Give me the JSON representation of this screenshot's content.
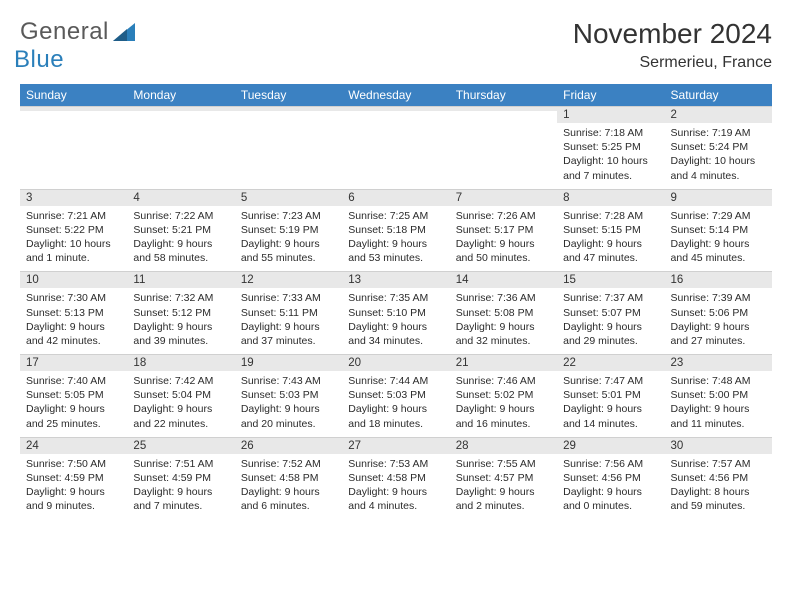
{
  "logo": {
    "general": "General",
    "blue": "Blue"
  },
  "title": "November 2024",
  "location": "Sermerieu, France",
  "day_headers": [
    "Sunday",
    "Monday",
    "Tuesday",
    "Wednesday",
    "Thursday",
    "Friday",
    "Saturday"
  ],
  "colors": {
    "header_bg": "#3b81c2",
    "header_text": "#ffffff",
    "daynum_bg": "#e8e8e8",
    "body_text": "#2b2b2b",
    "logo_gray": "#5a5a5a",
    "logo_blue": "#2a7fba"
  },
  "weeks": [
    [
      {
        "n": "",
        "sr": "",
        "ss": "",
        "dl": ""
      },
      {
        "n": "",
        "sr": "",
        "ss": "",
        "dl": ""
      },
      {
        "n": "",
        "sr": "",
        "ss": "",
        "dl": ""
      },
      {
        "n": "",
        "sr": "",
        "ss": "",
        "dl": ""
      },
      {
        "n": "",
        "sr": "",
        "ss": "",
        "dl": ""
      },
      {
        "n": "1",
        "sr": "Sunrise: 7:18 AM",
        "ss": "Sunset: 5:25 PM",
        "dl": "Daylight: 10 hours and 7 minutes."
      },
      {
        "n": "2",
        "sr": "Sunrise: 7:19 AM",
        "ss": "Sunset: 5:24 PM",
        "dl": "Daylight: 10 hours and 4 minutes."
      }
    ],
    [
      {
        "n": "3",
        "sr": "Sunrise: 7:21 AM",
        "ss": "Sunset: 5:22 PM",
        "dl": "Daylight: 10 hours and 1 minute."
      },
      {
        "n": "4",
        "sr": "Sunrise: 7:22 AM",
        "ss": "Sunset: 5:21 PM",
        "dl": "Daylight: 9 hours and 58 minutes."
      },
      {
        "n": "5",
        "sr": "Sunrise: 7:23 AM",
        "ss": "Sunset: 5:19 PM",
        "dl": "Daylight: 9 hours and 55 minutes."
      },
      {
        "n": "6",
        "sr": "Sunrise: 7:25 AM",
        "ss": "Sunset: 5:18 PM",
        "dl": "Daylight: 9 hours and 53 minutes."
      },
      {
        "n": "7",
        "sr": "Sunrise: 7:26 AM",
        "ss": "Sunset: 5:17 PM",
        "dl": "Daylight: 9 hours and 50 minutes."
      },
      {
        "n": "8",
        "sr": "Sunrise: 7:28 AM",
        "ss": "Sunset: 5:15 PM",
        "dl": "Daylight: 9 hours and 47 minutes."
      },
      {
        "n": "9",
        "sr": "Sunrise: 7:29 AM",
        "ss": "Sunset: 5:14 PM",
        "dl": "Daylight: 9 hours and 45 minutes."
      }
    ],
    [
      {
        "n": "10",
        "sr": "Sunrise: 7:30 AM",
        "ss": "Sunset: 5:13 PM",
        "dl": "Daylight: 9 hours and 42 minutes."
      },
      {
        "n": "11",
        "sr": "Sunrise: 7:32 AM",
        "ss": "Sunset: 5:12 PM",
        "dl": "Daylight: 9 hours and 39 minutes."
      },
      {
        "n": "12",
        "sr": "Sunrise: 7:33 AM",
        "ss": "Sunset: 5:11 PM",
        "dl": "Daylight: 9 hours and 37 minutes."
      },
      {
        "n": "13",
        "sr": "Sunrise: 7:35 AM",
        "ss": "Sunset: 5:10 PM",
        "dl": "Daylight: 9 hours and 34 minutes."
      },
      {
        "n": "14",
        "sr": "Sunrise: 7:36 AM",
        "ss": "Sunset: 5:08 PM",
        "dl": "Daylight: 9 hours and 32 minutes."
      },
      {
        "n": "15",
        "sr": "Sunrise: 7:37 AM",
        "ss": "Sunset: 5:07 PM",
        "dl": "Daylight: 9 hours and 29 minutes."
      },
      {
        "n": "16",
        "sr": "Sunrise: 7:39 AM",
        "ss": "Sunset: 5:06 PM",
        "dl": "Daylight: 9 hours and 27 minutes."
      }
    ],
    [
      {
        "n": "17",
        "sr": "Sunrise: 7:40 AM",
        "ss": "Sunset: 5:05 PM",
        "dl": "Daylight: 9 hours and 25 minutes."
      },
      {
        "n": "18",
        "sr": "Sunrise: 7:42 AM",
        "ss": "Sunset: 5:04 PM",
        "dl": "Daylight: 9 hours and 22 minutes."
      },
      {
        "n": "19",
        "sr": "Sunrise: 7:43 AM",
        "ss": "Sunset: 5:03 PM",
        "dl": "Daylight: 9 hours and 20 minutes."
      },
      {
        "n": "20",
        "sr": "Sunrise: 7:44 AM",
        "ss": "Sunset: 5:03 PM",
        "dl": "Daylight: 9 hours and 18 minutes."
      },
      {
        "n": "21",
        "sr": "Sunrise: 7:46 AM",
        "ss": "Sunset: 5:02 PM",
        "dl": "Daylight: 9 hours and 16 minutes."
      },
      {
        "n": "22",
        "sr": "Sunrise: 7:47 AM",
        "ss": "Sunset: 5:01 PM",
        "dl": "Daylight: 9 hours and 14 minutes."
      },
      {
        "n": "23",
        "sr": "Sunrise: 7:48 AM",
        "ss": "Sunset: 5:00 PM",
        "dl": "Daylight: 9 hours and 11 minutes."
      }
    ],
    [
      {
        "n": "24",
        "sr": "Sunrise: 7:50 AM",
        "ss": "Sunset: 4:59 PM",
        "dl": "Daylight: 9 hours and 9 minutes."
      },
      {
        "n": "25",
        "sr": "Sunrise: 7:51 AM",
        "ss": "Sunset: 4:59 PM",
        "dl": "Daylight: 9 hours and 7 minutes."
      },
      {
        "n": "26",
        "sr": "Sunrise: 7:52 AM",
        "ss": "Sunset: 4:58 PM",
        "dl": "Daylight: 9 hours and 6 minutes."
      },
      {
        "n": "27",
        "sr": "Sunrise: 7:53 AM",
        "ss": "Sunset: 4:58 PM",
        "dl": "Daylight: 9 hours and 4 minutes."
      },
      {
        "n": "28",
        "sr": "Sunrise: 7:55 AM",
        "ss": "Sunset: 4:57 PM",
        "dl": "Daylight: 9 hours and 2 minutes."
      },
      {
        "n": "29",
        "sr": "Sunrise: 7:56 AM",
        "ss": "Sunset: 4:56 PM",
        "dl": "Daylight: 9 hours and 0 minutes."
      },
      {
        "n": "30",
        "sr": "Sunrise: 7:57 AM",
        "ss": "Sunset: 4:56 PM",
        "dl": "Daylight: 8 hours and 59 minutes."
      }
    ]
  ]
}
